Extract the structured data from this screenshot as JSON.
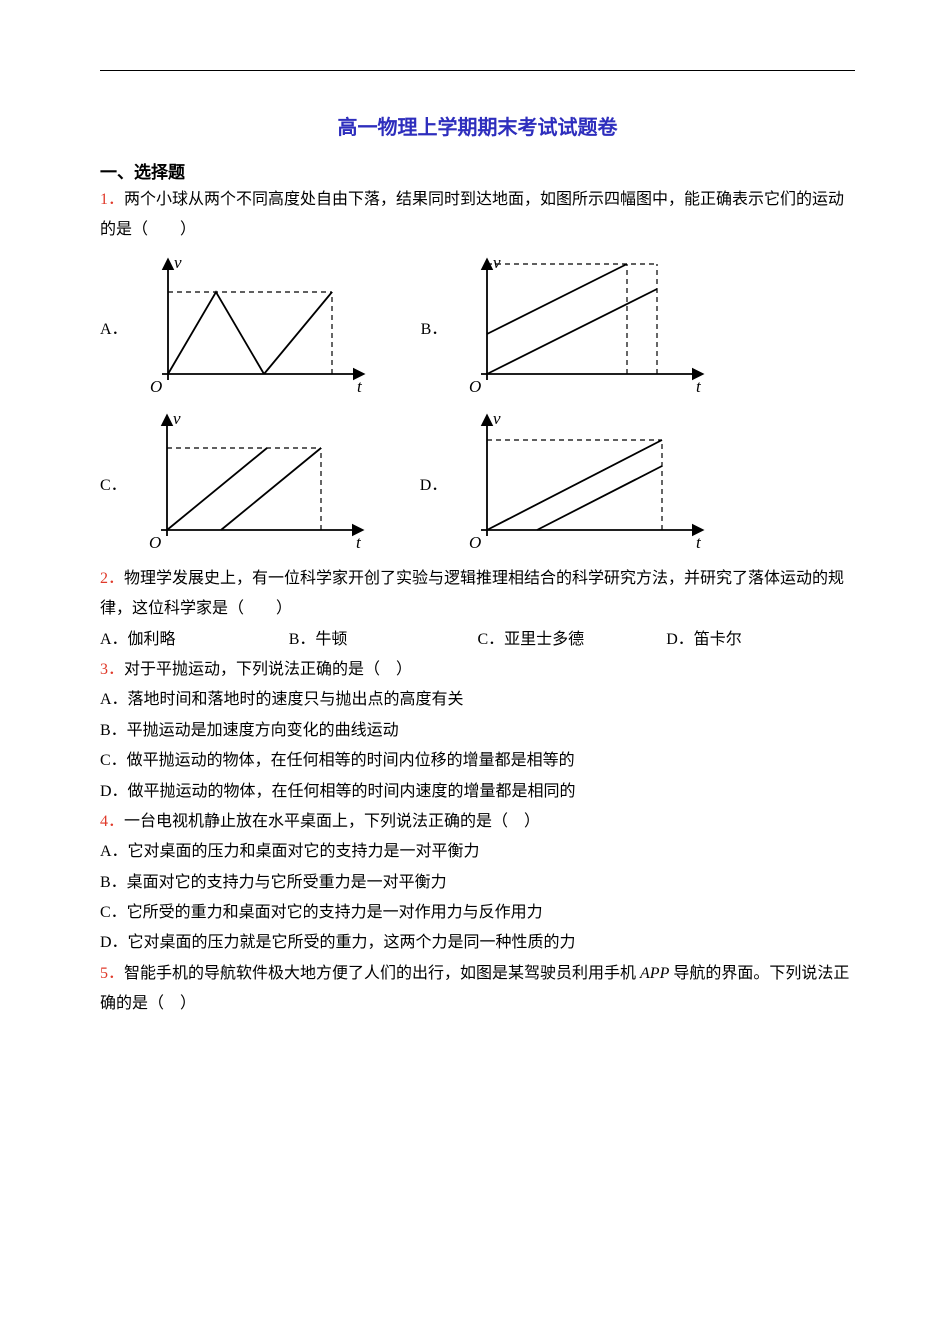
{
  "page": {
    "title": "高一物理上学期期末考试试题卷",
    "section1_header": "一、选择题"
  },
  "q1": {
    "num": "1．",
    "stem": "两个小球从两个不同高度处自由下落，结果同时到达地面，如图所示四幅图中，能正确表示它们的运动的是（　　）",
    "labels": {
      "A": "A．",
      "B": "B．",
      "C": "C．",
      "D": "D．"
    },
    "axis": {
      "y": "v",
      "x": "t",
      "O": "O"
    },
    "chart": {
      "axis_color": "#000000",
      "line_color": "#000000",
      "dash_color": "#000000",
      "stroke_width": 1.8,
      "A": {
        "type": "line",
        "lines": [
          {
            "pts": [
              [
                0,
                0
              ],
              [
                48,
                82
              ],
              [
                96,
                0
              ]
            ]
          },
          {
            "pts": [
              [
                96,
                0
              ],
              [
                164,
                82
              ]
            ]
          }
        ],
        "dashes": [
          {
            "pts": [
              [
                0,
                82
              ],
              [
                164,
                82
              ]
            ]
          },
          {
            "pts": [
              [
                164,
                0
              ],
              [
                164,
                82
              ]
            ]
          }
        ]
      },
      "B": {
        "type": "line",
        "lines": [
          {
            "pts": [
              [
                0,
                40
              ],
              [
                140,
                110
              ]
            ]
          },
          {
            "pts": [
              [
                0,
                0
              ],
              [
                170,
                85
              ]
            ]
          }
        ],
        "dashes": [
          {
            "pts": [
              [
                0,
                110
              ],
              [
                170,
                110
              ]
            ]
          },
          {
            "pts": [
              [
                170,
                0
              ],
              [
                170,
                110
              ]
            ]
          },
          {
            "pts": [
              [
                140,
                0
              ],
              [
                140,
                110
              ]
            ]
          }
        ]
      },
      "C": {
        "type": "line",
        "lines": [
          {
            "pts": [
              [
                0,
                0
              ],
              [
                100,
                82
              ]
            ]
          },
          {
            "pts": [
              [
                54,
                0
              ],
              [
                154,
                82
              ]
            ]
          }
        ],
        "dashes": [
          {
            "pts": [
              [
                0,
                82
              ],
              [
                154,
                82
              ]
            ]
          },
          {
            "pts": [
              [
                154,
                0
              ],
              [
                154,
                82
              ]
            ]
          }
        ]
      },
      "D": {
        "type": "line",
        "lines": [
          {
            "pts": [
              [
                0,
                0
              ],
              [
                175,
                90
              ]
            ]
          },
          {
            "pts": [
              [
                50,
                0
              ],
              [
                175,
                64
              ]
            ]
          }
        ],
        "dashes": [
          {
            "pts": [
              [
                0,
                90
              ],
              [
                175,
                90
              ]
            ]
          },
          {
            "pts": [
              [
                175,
                0
              ],
              [
                175,
                90
              ]
            ]
          }
        ]
      }
    }
  },
  "q2": {
    "num": "2．",
    "stem": "物理学发展史上，有一位科学家开创了实验与逻辑推理相结合的科学研究方法，并研究了落体运动的规律，这位科学家是（　　）",
    "opts": {
      "A": "A．伽利略",
      "B": "B．牛顿",
      "C": "C．亚里士多德",
      "D": "D．笛卡尔"
    }
  },
  "q3": {
    "num": "3．",
    "stem": "对于平抛运动，下列说法正确的是（　）",
    "opts": {
      "A": "A．落地时间和落地时的速度只与抛出点的高度有关",
      "B": "B．平抛运动是加速度方向变化的曲线运动",
      "C": "C．做平抛运动的物体，在任何相等的时间内位移的增量都是相等的",
      "D": "D．做平抛运动的物体，在任何相等的时间内速度的增量都是相同的"
    }
  },
  "q4": {
    "num": "4．",
    "stem": "一台电视机静止放在水平桌面上，下列说法正确的是（　）",
    "opts": {
      "A": "A．它对桌面的压力和桌面对它的支持力是一对平衡力",
      "B": "B．桌面对它的支持力与它所受重力是一对平衡力",
      "C": "C．它所受的重力和桌面对它的支持力是一对作用力与反作用力",
      "D": "D．它对桌面的压力就是它所受的重力，这两个力是同一种性质的力"
    }
  },
  "q5": {
    "num": "5．",
    "stem_a": "智能手机的导航软件极大地方便了人们的出行，如图是某驾驶员利用手机 ",
    "stem_b": " 导航的界面。下列说法正确的是（　）",
    "italic": "APP"
  }
}
